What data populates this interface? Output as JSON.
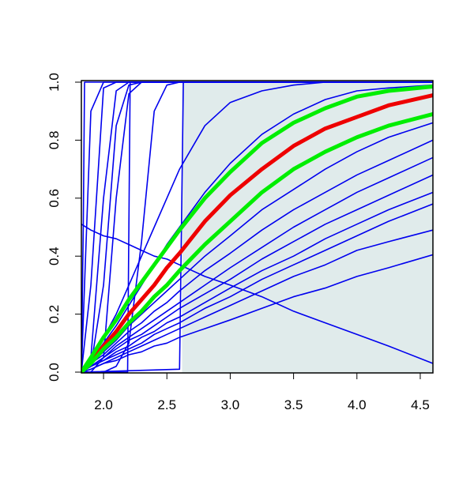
{
  "chart_data": {
    "type": "line",
    "xlim": [
      1.825,
      4.6
    ],
    "ylim": [
      0,
      1
    ],
    "xticks": [
      {
        "value": 2,
        "label": "2.0"
      },
      {
        "value": 2.5,
        "label": "2.5"
      },
      {
        "value": 3,
        "label": "3.0"
      },
      {
        "value": 3.5,
        "label": "3.5"
      },
      {
        "value": 4,
        "label": "4.0"
      },
      {
        "value": 4.5,
        "label": "4.5"
      }
    ],
    "yticks": [
      {
        "value": 0,
        "label": "0.0"
      },
      {
        "value": 0.2,
        "label": "0.2"
      },
      {
        "value": 0.4,
        "label": "0.4"
      },
      {
        "value": 0.6,
        "label": "0.6"
      },
      {
        "value": 0.8,
        "label": "0.8"
      },
      {
        "value": 1,
        "label": "1.0"
      }
    ],
    "band": {
      "x": [
        2.62,
        4.6
      ],
      "color": "#e0ebeb"
    },
    "x": [
      1.825,
      1.9,
      2.0,
      2.1,
      2.2,
      2.3,
      2.4,
      2.5,
      2.6,
      2.8,
      3.0,
      3.25,
      3.5,
      3.75,
      4.0,
      4.25,
      4.6
    ],
    "series": [
      {
        "color": "#0000ee",
        "values": [
          0,
          0.9,
          1,
          1,
          1,
          1,
          1,
          1,
          1,
          1,
          1,
          1,
          1,
          1,
          1,
          1,
          1
        ]
      },
      {
        "color": "#0000ee",
        "values": [
          0,
          0.3,
          0.98,
          1,
          1,
          1,
          1,
          1,
          1,
          1,
          1,
          1,
          1,
          1,
          1,
          1,
          1
        ]
      },
      {
        "color": "#0000ee",
        "values": [
          0,
          0.05,
          0.6,
          0.97,
          1,
          1,
          1,
          1,
          1,
          1,
          1,
          1,
          1,
          1,
          1,
          1,
          1
        ]
      },
      {
        "color": "#0000ee",
        "values": [
          0,
          0.02,
          0.3,
          0.85,
          0.99,
          1,
          1,
          1,
          1,
          1,
          1,
          1,
          1,
          1,
          1,
          1,
          1
        ]
      },
      {
        "color": "#0000ee",
        "values": [
          0,
          0,
          0.05,
          0.6,
          0.96,
          1,
          1,
          1,
          1,
          1,
          1,
          1,
          1,
          1,
          1,
          1,
          1
        ]
      },
      {
        "color": "#0000ee",
        "values": [
          0,
          0,
          0,
          0.02,
          0.1,
          0.45,
          0.9,
          0.99,
          1,
          1,
          1,
          1,
          1,
          1,
          1,
          1,
          1
        ]
      },
      {
        "color": "#0000ee",
        "values": [
          0,
          0.05,
          0.12,
          0.2,
          0.3,
          0.4,
          0.5,
          0.6,
          0.7,
          0.85,
          0.93,
          0.97,
          0.99,
          1,
          1,
          1,
          1
        ]
      },
      {
        "color": "#0000ee",
        "values": [
          0,
          0.04,
          0.1,
          0.16,
          0.23,
          0.3,
          0.37,
          0.44,
          0.5,
          0.62,
          0.72,
          0.82,
          0.89,
          0.94,
          0.97,
          0.98,
          0.99
        ]
      },
      {
        "color": "#0000ee",
        "values": [
          0,
          0.03,
          0.07,
          0.11,
          0.16,
          0.2,
          0.24,
          0.28,
          0.32,
          0.4,
          0.47,
          0.56,
          0.63,
          0.7,
          0.76,
          0.81,
          0.86
        ]
      },
      {
        "color": "#0000ee",
        "values": [
          0,
          0.03,
          0.06,
          0.1,
          0.14,
          0.17,
          0.21,
          0.24,
          0.28,
          0.35,
          0.41,
          0.49,
          0.56,
          0.62,
          0.68,
          0.73,
          0.8
        ]
      },
      {
        "color": "#0000ee",
        "values": [
          0,
          0.02,
          0.05,
          0.09,
          0.12,
          0.15,
          0.18,
          0.21,
          0.24,
          0.3,
          0.36,
          0.43,
          0.5,
          0.56,
          0.62,
          0.67,
          0.74
        ]
      },
      {
        "color": "#0000ee",
        "values": [
          0,
          0.02,
          0.05,
          0.08,
          0.11,
          0.13,
          0.16,
          0.19,
          0.22,
          0.27,
          0.32,
          0.39,
          0.45,
          0.51,
          0.56,
          0.61,
          0.68
        ]
      },
      {
        "color": "#0000ee",
        "values": [
          0,
          0.02,
          0.04,
          0.07,
          0.09,
          0.12,
          0.14,
          0.17,
          0.19,
          0.24,
          0.29,
          0.35,
          0.4,
          0.46,
          0.51,
          0.56,
          0.62
        ]
      },
      {
        "color": "#0000ee",
        "values": [
          0,
          0.02,
          0.04,
          0.06,
          0.08,
          0.1,
          0.13,
          0.15,
          0.17,
          0.22,
          0.26,
          0.32,
          0.37,
          0.42,
          0.47,
          0.52,
          0.58
        ]
      },
      {
        "color": "#0000ee",
        "values": [
          0,
          0.01,
          0.03,
          0.05,
          0.07,
          0.09,
          0.11,
          0.13,
          0.15,
          0.19,
          0.23,
          0.28,
          0.33,
          0.37,
          0.42,
          0.45,
          0.49
        ]
      },
      {
        "color": "#0000ee",
        "values": [
          0,
          0.01,
          0.03,
          0.04,
          0.06,
          0.07,
          0.09,
          0.1,
          0.12,
          0.15,
          0.18,
          0.22,
          0.26,
          0.29,
          0.33,
          0.36,
          0.405
        ]
      },
      {
        "color": "#0000ee",
        "values": [
          0.51,
          0.49,
          0.47,
          0.46,
          0.44,
          0.42,
          0.4,
          0.39,
          0.37,
          0.33,
          0.3,
          0.26,
          0.21,
          0.17,
          0.13,
          0.09,
          0.03
        ]
      },
      {
        "color": "#0000ee",
        "x": [
          1.825,
          2.19,
          2.2,
          2.21,
          4.6
        ],
        "values": [
          0,
          0,
          0.5,
          1,
          1
        ]
      },
      {
        "color": "#0000ee",
        "x": [
          1.825,
          2.6,
          2.615,
          2.63,
          4.6
        ],
        "values": [
          0,
          0.01,
          0.5,
          1,
          1
        ]
      },
      {
        "color": "#0000ee",
        "x": [
          1.825,
          1.84,
          1.85,
          4.6
        ],
        "values": [
          0,
          0.5,
          1,
          1
        ]
      },
      {
        "color": "#ee0000",
        "width": 5,
        "values": [
          0,
          0.04,
          0.09,
          0.14,
          0.2,
          0.25,
          0.3,
          0.36,
          0.41,
          0.52,
          0.61,
          0.7,
          0.78,
          0.84,
          0.88,
          0.92,
          0.955
        ]
      },
      {
        "color": "#00ee00",
        "width": 5,
        "values": [
          0,
          0.05,
          0.12,
          0.18,
          0.25,
          0.31,
          0.37,
          0.43,
          0.49,
          0.6,
          0.69,
          0.79,
          0.86,
          0.91,
          0.95,
          0.97,
          0.985
        ]
      },
      {
        "color": "#00ee00",
        "width": 5,
        "values": [
          0,
          0.03,
          0.08,
          0.12,
          0.17,
          0.21,
          0.26,
          0.3,
          0.35,
          0.44,
          0.52,
          0.62,
          0.7,
          0.76,
          0.81,
          0.85,
          0.89
        ]
      }
    ]
  }
}
